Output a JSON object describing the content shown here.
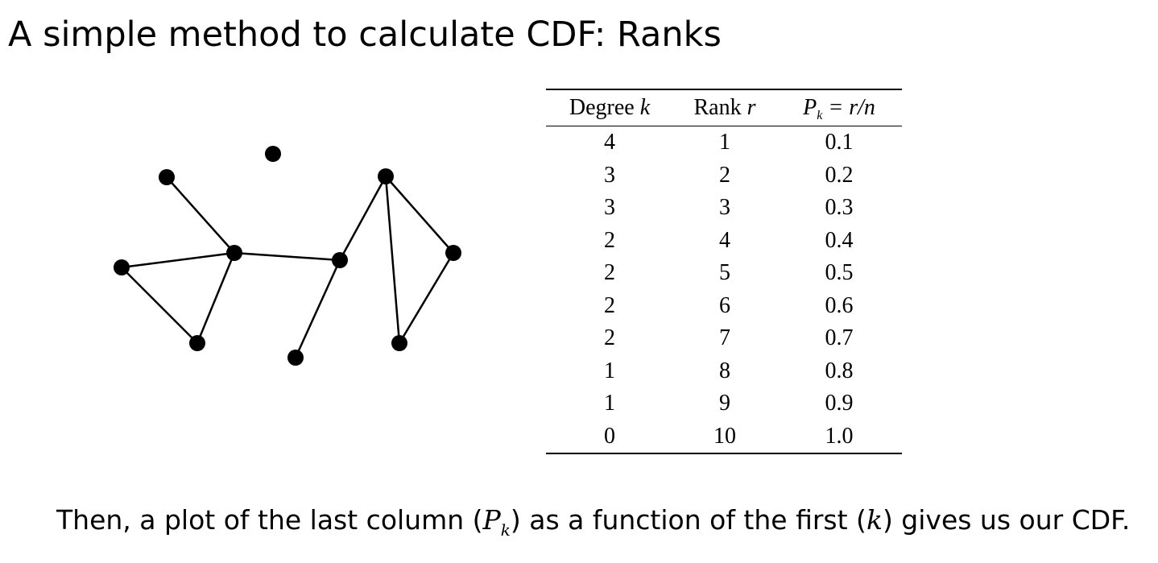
{
  "title": "A simple method to calculate CDF: Ranks",
  "table": {
    "header": {
      "degree_word": "Degree",
      "degree_var": "k",
      "rank_word": "Rank",
      "rank_var": "r",
      "p_var": "P",
      "p_sub": "k",
      "p_expr": " = r/n"
    },
    "rows": [
      {
        "degree": "4",
        "rank": "1",
        "p": "0.1"
      },
      {
        "degree": "3",
        "rank": "2",
        "p": "0.2"
      },
      {
        "degree": "3",
        "rank": "3",
        "p": "0.3"
      },
      {
        "degree": "2",
        "rank": "4",
        "p": "0.4"
      },
      {
        "degree": "2",
        "rank": "5",
        "p": "0.5"
      },
      {
        "degree": "2",
        "rank": "6",
        "p": "0.6"
      },
      {
        "degree": "2",
        "rank": "7",
        "p": "0.7"
      },
      {
        "degree": "1",
        "rank": "8",
        "p": "0.8"
      },
      {
        "degree": "1",
        "rank": "9",
        "p": "0.9"
      },
      {
        "degree": "0",
        "rank": "10",
        "p": "1.0"
      }
    ]
  },
  "caption": {
    "part1": "Then, a plot of the last column (",
    "p_var": "P",
    "p_sub": "k",
    "part2": ") as a function of the first (",
    "k_var": "k",
    "part3": ") gives us our CDF."
  }
}
